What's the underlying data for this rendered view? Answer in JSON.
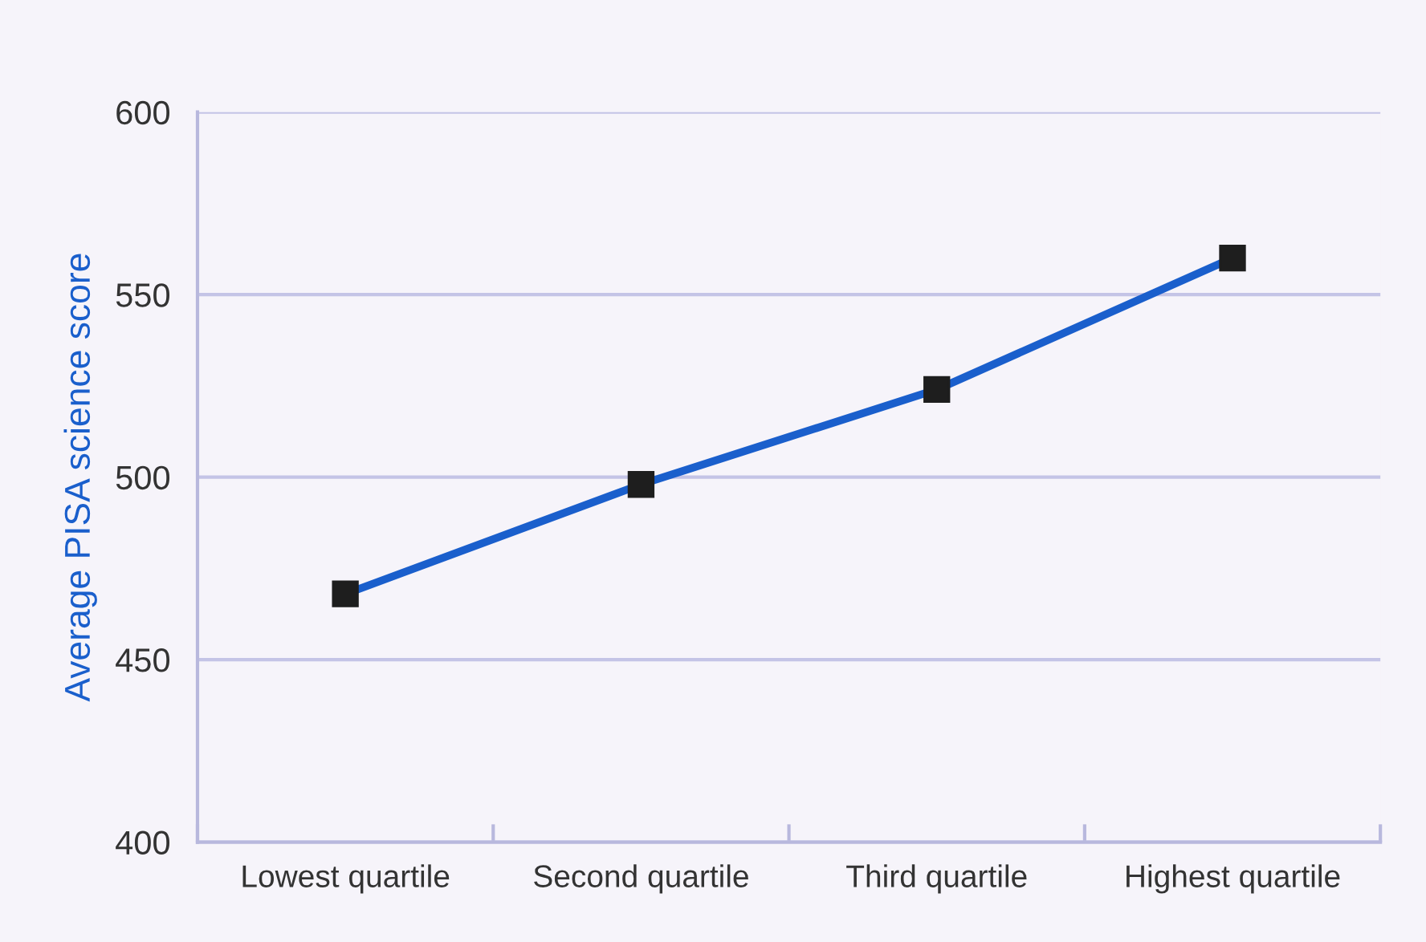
{
  "chart_data": {
    "type": "line",
    "ylabel": "Average PISA science score",
    "categories": [
      "Lowest quartile",
      "Second quartile",
      "Third quartile",
      "Highest quartile"
    ],
    "series": [
      {
        "color": "#1a5fcc",
        "values": [
          468,
          498,
          524,
          560
        ]
      }
    ],
    "ylim": [
      400,
      600
    ],
    "yticks": [
      400,
      450,
      500,
      550,
      600
    ],
    "grid": "y",
    "marker": "square",
    "line_style": "solid",
    "legend": false
  }
}
